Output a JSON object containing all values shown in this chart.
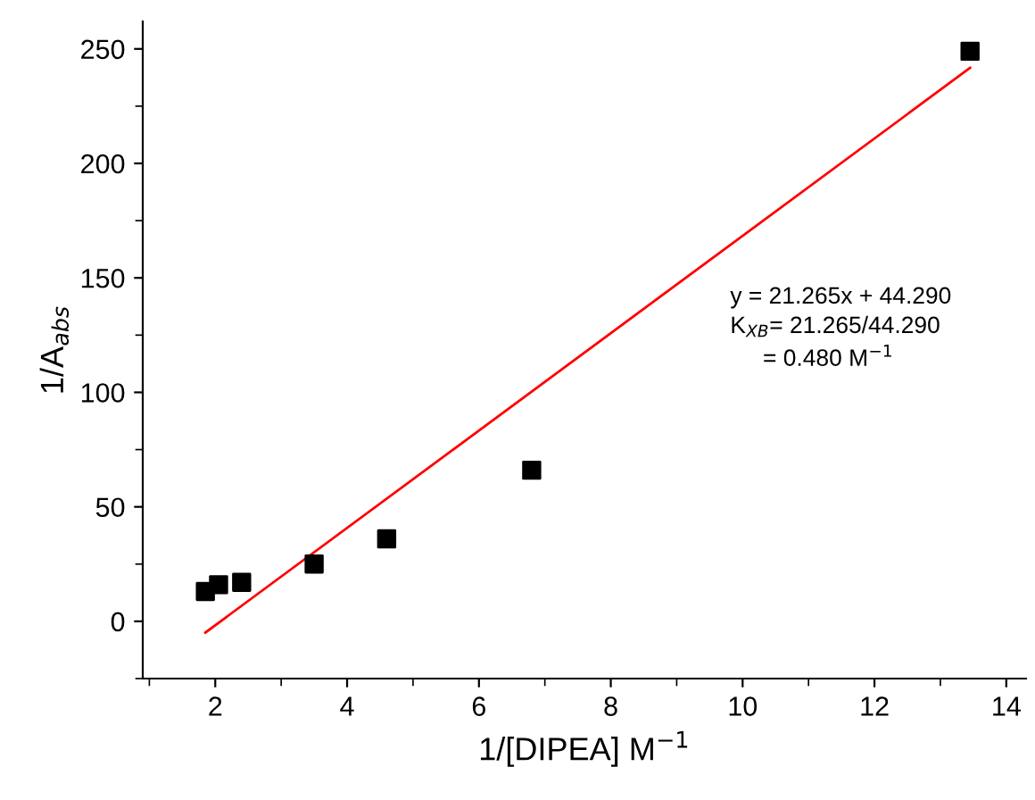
{
  "chart_data": {
    "type": "scatter",
    "xlabel": "1/[DIPEA] M$^{−1}$",
    "ylabel": "1/A$_{abs}$",
    "series": [
      {
        "color": "#000000",
        "marker": "square",
        "x": [
          1.85,
          2.05,
          2.4,
          3.5,
          4.6,
          6.8,
          13.45
        ],
        "values": [
          13,
          16,
          17,
          25,
          36,
          66,
          249
        ]
      },
      {
        "type": "line",
        "color": "#ff0000",
        "marker": "none",
        "line_style": "solid",
        "x": [
          1.85,
          13.45
        ],
        "values": [
          -4.9,
          241.7
        ]
      }
    ],
    "xlim": [
      0.9,
      14.3
    ],
    "xticks": [
      2,
      4,
      6,
      8,
      10,
      12,
      14
    ],
    "ylim": [
      -25,
      262
    ],
    "yticks": [
      0,
      50,
      100,
      150,
      200,
      250
    ],
    "grid": false,
    "legend": false,
    "annotations": [
      "y = 21.265x + 44.290",
      "K$_{XB}$= 21.265/44.290",
      "     = 0.480 M$^{−1}$"
    ]
  }
}
